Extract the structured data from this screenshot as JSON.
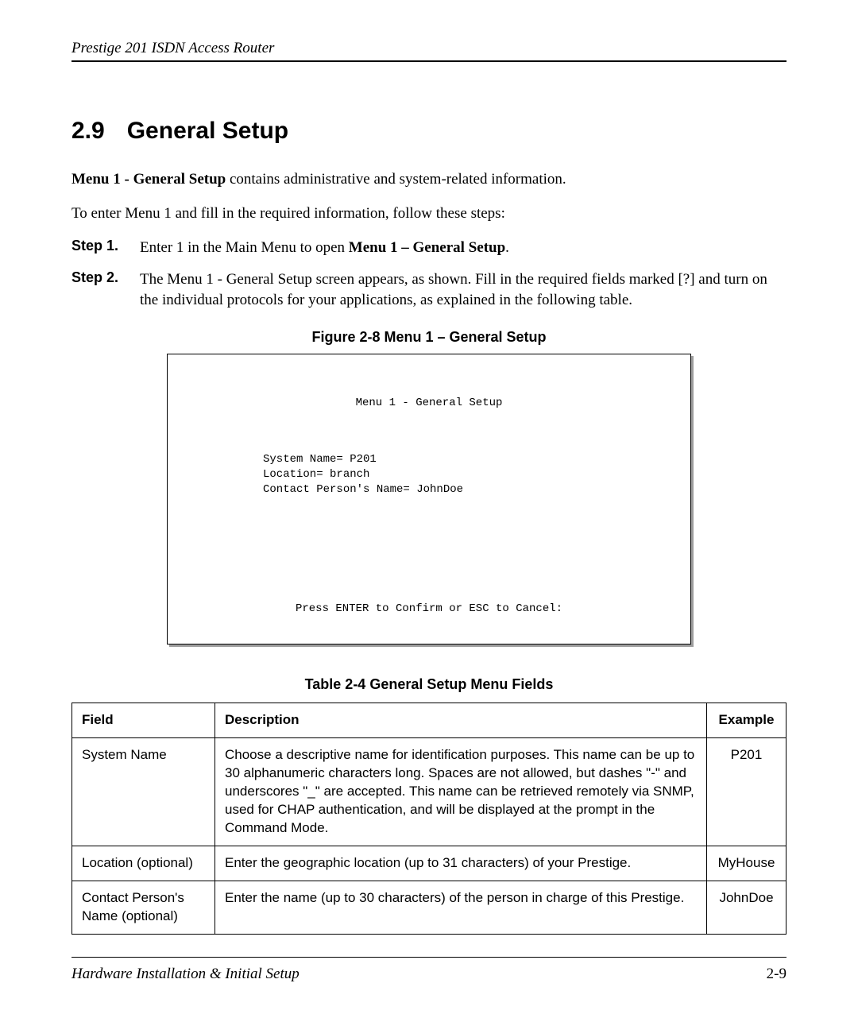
{
  "header": {
    "title": "Prestige 201 ISDN Access Router"
  },
  "section": {
    "number": "2.9",
    "title": "General Setup"
  },
  "intro": {
    "bold_lead": "Menu 1 - General Setup",
    "rest": " contains administrative and system-related information.",
    "line2": "To enter Menu 1 and fill in the required information, follow these steps:"
  },
  "steps": [
    {
      "label": "Step 1.",
      "pre": "Enter 1 in the Main Menu to open ",
      "bold": "Menu 1 – General Setup",
      "post": "."
    },
    {
      "label": "Step 2.",
      "pre": "The Menu 1 - General Setup screen appears, as shown. Fill in the required fields marked [?] and turn on the individual protocols for your applications, as explained in the following table.",
      "bold": "",
      "post": ""
    }
  ],
  "figure": {
    "caption": "Figure 2-8 Menu 1 – General Setup",
    "terminal_title": "Menu 1 - General Setup",
    "terminal_lines": "System Name= P201\nLocation= branch\nContact Person's Name= JohnDoe",
    "terminal_footer": "Press ENTER to Confirm or ESC to Cancel:"
  },
  "table": {
    "caption": "Table 2-4 General Setup Menu Fields",
    "columns": [
      "Field",
      "Description",
      "Example"
    ],
    "rows": [
      {
        "field": "System Name",
        "description": "Choose a descriptive name for identification purposes. This name can be up to 30 alphanumeric characters long. Spaces are not allowed, but dashes \"-\" and underscores \"_\" are accepted. This name can be retrieved remotely via SNMP, used for CHAP authentication, and will be displayed at the prompt in the Command Mode.",
        "example": "P201"
      },
      {
        "field": "Location (optional)",
        "description": "Enter the geographic location (up to 31 characters) of your Prestige.",
        "example": "MyHouse"
      },
      {
        "field": "Contact Person's Name (optional)",
        "description": "Enter the name (up to 30 characters) of the person in charge of this Prestige.",
        "example": "JohnDoe"
      }
    ]
  },
  "footer": {
    "left": "Hardware Installation & Initial Setup",
    "right": "2-9"
  }
}
